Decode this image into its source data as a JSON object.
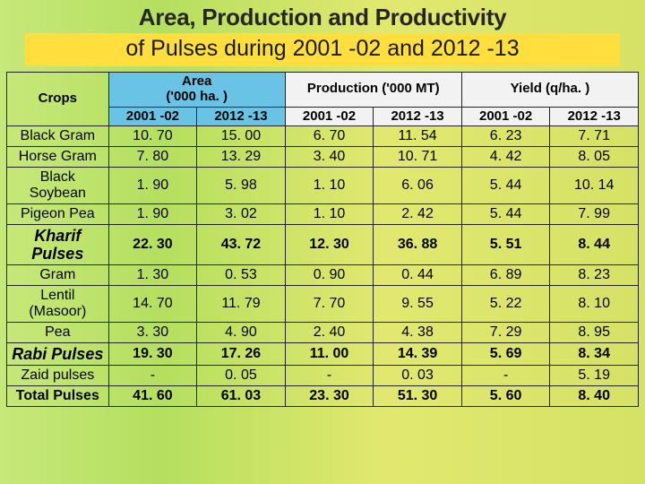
{
  "title": {
    "line1": "Area, Production and Productivity",
    "line2": "of Pulses during 2001 -02 and 2012 -13"
  },
  "table": {
    "header": {
      "crops": "Crops",
      "area_label": "Area\n('000 ha. )",
      "production_label": "Production ('000 MT)",
      "yield_label": "Yield (q/ha. )",
      "year_a": "2001 -02",
      "year_b": "2012 -13"
    },
    "rows": [
      {
        "type": "plain",
        "label": "Black Gram",
        "v": [
          "10. 70",
          "15. 00",
          "6. 70",
          "11. 54",
          "6. 23",
          "7. 71"
        ]
      },
      {
        "type": "plain",
        "label": "Horse Gram",
        "v": [
          "7. 80",
          "13. 29",
          "3. 40",
          "10. 71",
          "4. 42",
          "8. 05"
        ]
      },
      {
        "type": "plain",
        "label": "Black Soybean",
        "v": [
          "1. 90",
          "5. 98",
          "1. 10",
          "6. 06",
          "5. 44",
          "10. 14"
        ]
      },
      {
        "type": "plain",
        "label": "Pigeon Pea",
        "v": [
          "1. 90",
          "3. 02",
          "1. 10",
          "2. 42",
          "5. 44",
          "7. 99"
        ]
      },
      {
        "type": "subtotal",
        "label": "Kharif Pulses",
        "v": [
          "22. 30",
          "43. 72",
          "12. 30",
          "36. 88",
          "5. 51",
          "8. 44"
        ]
      },
      {
        "type": "plain",
        "label": "Gram",
        "v": [
          "1. 30",
          "0. 53",
          "0. 90",
          "0. 44",
          "6. 89",
          "8. 23"
        ]
      },
      {
        "type": "plain",
        "label": "Lentil (Masoor)",
        "v": [
          "14. 70",
          "11. 79",
          "7. 70",
          "9. 55",
          "5. 22",
          "8. 10"
        ]
      },
      {
        "type": "plain",
        "label": "Pea",
        "v": [
          "3. 30",
          "4. 90",
          "2. 40",
          "4. 38",
          "7. 29",
          "8. 95"
        ]
      },
      {
        "type": "subtotal",
        "label": "Rabi Pulses",
        "v": [
          "19. 30",
          "17. 26",
          "11. 00",
          "14. 39",
          "5. 69",
          "8. 34"
        ]
      },
      {
        "type": "plain",
        "label": "Zaid pulses",
        "v": [
          "-",
          "0. 05",
          "-",
          "0. 03",
          "-",
          "5. 19"
        ]
      },
      {
        "type": "total",
        "label": "Total Pulses",
        "v": [
          "41. 60",
          "61. 03",
          "23. 30",
          "51. 30",
          "5. 60",
          "8. 40"
        ]
      }
    ]
  },
  "styling": {
    "header_bg_a": "#69c3e4",
    "header_bg_b": "#f2f2f2",
    "background_gradient": [
      "#c7e87a",
      "#b5df5f",
      "#e2e86f",
      "#d4e265"
    ],
    "title_bar_bg": "#ffde3d",
    "border_color": "#222222",
    "font_family": "Arial",
    "title_font_weight": 900,
    "cell_font_size_pt": 12,
    "bold_font_size_pt": 13
  }
}
